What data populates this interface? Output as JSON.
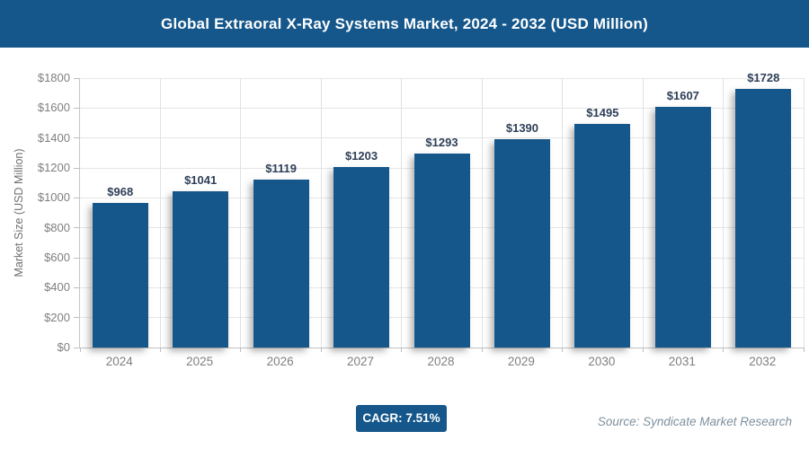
{
  "header": {
    "title": "Global Extraoral X-Ray Systems Market, 2024 - 2032 (USD Million)"
  },
  "chart_data": {
    "type": "bar",
    "title": "Global Extraoral X-Ray Systems Market, 2024 - 2032 (USD Million)",
    "categories": [
      "2024",
      "2025",
      "2026",
      "2027",
      "2028",
      "2029",
      "2030",
      "2031",
      "2032"
    ],
    "values": [
      968,
      1041,
      1119,
      1203,
      1293,
      1390,
      1495,
      1607,
      1728
    ],
    "data_labels": [
      "$968",
      "$1041",
      "$1119",
      "$1203",
      "$1293",
      "$1390",
      "$1495",
      "$1607",
      "$1728"
    ],
    "xlabel": "",
    "ylabel": "Market Size (USD Million)",
    "ylim": [
      0,
      1800
    ],
    "ytick_step": 200,
    "ytick_labels": [
      "$0",
      "$200",
      "$400",
      "$600",
      "$800",
      "$1000",
      "$1200",
      "$1400",
      "$1600",
      "$1800"
    ],
    "grid": true,
    "legend": "none",
    "bar_color": "#15578B"
  },
  "footer": {
    "cagr_label": "CAGR: 7.51%",
    "source_text": "Source: Syndicate Market Research"
  },
  "colors": {
    "header_bg": "#15578B",
    "header_text": "#FFFFFF",
    "bar_fill": "#15578B",
    "data_label_text": "#2E3F58",
    "axis_text": "#7F7F7F",
    "axis_title_text": "#6F6F6F",
    "grid_line": "#E6E6E6",
    "badge_bg": "#15578B",
    "source_text_color": "#7E909E"
  }
}
